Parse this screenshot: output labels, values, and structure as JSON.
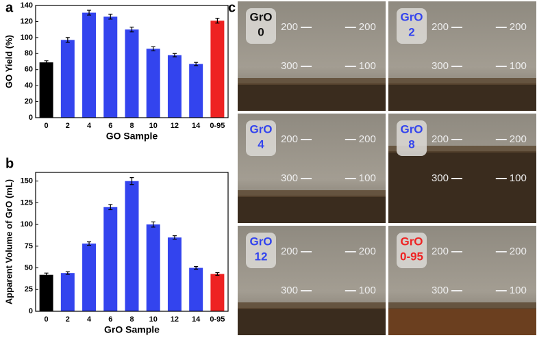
{
  "panel_labels": [
    "a",
    "b",
    "c"
  ],
  "chart_data": [
    {
      "type": "bar",
      "ylabel": "GO Yield (%)",
      "xlabel": "GO Sample",
      "categories": [
        "0",
        "2",
        "4",
        "6",
        "8",
        "10",
        "12",
        "14",
        "0-95"
      ],
      "values": [
        69,
        97,
        131,
        126,
        110,
        86,
        78,
        67,
        121
      ],
      "errors": [
        2,
        3,
        3,
        3,
        3,
        2.5,
        2,
        2,
        3
      ],
      "colors": [
        "#000000",
        "#3344ee",
        "#3344ee",
        "#3344ee",
        "#3344ee",
        "#3344ee",
        "#3344ee",
        "#3344ee",
        "#ee2222"
      ],
      "ylim": [
        0,
        140
      ],
      "yticks": [
        0,
        20,
        40,
        60,
        80,
        100,
        120,
        140
      ]
    },
    {
      "type": "bar",
      "ylabel": "Apparent Volume of GrO (mL)",
      "xlabel": "GrO Sample",
      "categories": [
        "0",
        "2",
        "4",
        "6",
        "8",
        "10",
        "12",
        "14",
        "0-95"
      ],
      "values": [
        42,
        44,
        78,
        120,
        150,
        100,
        85,
        50,
        43
      ],
      "errors": [
        2,
        1.5,
        2,
        3,
        4,
        3,
        2,
        1.5,
        1.5
      ],
      "colors": [
        "#000000",
        "#3344ee",
        "#3344ee",
        "#3344ee",
        "#3344ee",
        "#3344ee",
        "#3344ee",
        "#3344ee",
        "#ee2222"
      ],
      "ylim": [
        0,
        160
      ],
      "yticks": [
        0,
        25,
        50,
        75,
        100,
        125,
        150
      ]
    }
  ],
  "beaker_marks": {
    "left": [
      "200",
      "300"
    ],
    "right": [
      "200",
      "100"
    ]
  },
  "photos": [
    {
      "label": [
        "GrO",
        "0"
      ],
      "color": "#111111"
    },
    {
      "label": [
        "GrO",
        "2"
      ],
      "color": "#3344ee"
    },
    {
      "label": [
        "GrO",
        "4"
      ],
      "color": "#3344ee"
    },
    {
      "label": [
        "GrO",
        "8"
      ],
      "color": "#3344ee"
    },
    {
      "label": [
        "GrO",
        "12"
      ],
      "color": "#3344ee"
    },
    {
      "label": [
        "GrO",
        "0-95"
      ],
      "color": "#ee2222"
    }
  ]
}
